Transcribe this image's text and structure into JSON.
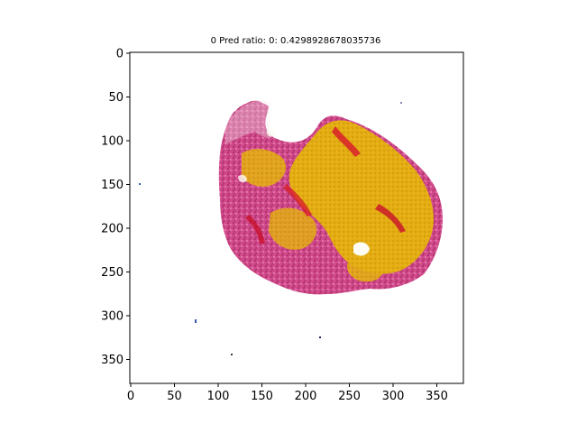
{
  "figure": {
    "title": "0 Pred ratio: 0: 0.4298928678035736"
  },
  "axes": {
    "x_ticks": [
      "0",
      "50",
      "100",
      "150",
      "200",
      "250",
      "300",
      "350"
    ],
    "y_ticks": [
      "0",
      "50",
      "100",
      "150",
      "200",
      "250",
      "300",
      "350"
    ],
    "x_range": [
      0,
      380
    ],
    "y_range": [
      0,
      380
    ]
  },
  "colors": {
    "tissue_magenta": "#d24a8c",
    "tissue_pink": "#e58bb4",
    "tissue_red": "#d8202a",
    "tissue_gold": "#e8b010",
    "tissue_white": "#fdfdf6",
    "frame": "#000000"
  }
}
